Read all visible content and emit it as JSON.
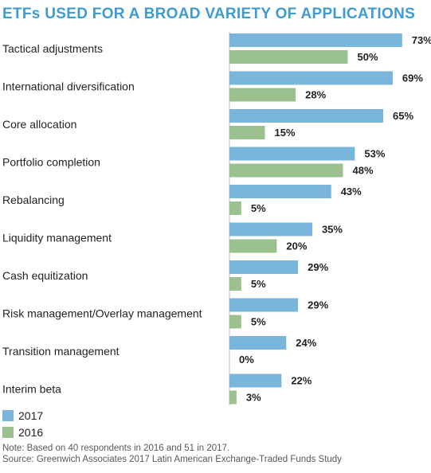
{
  "title": "ETFs USED FOR A BROAD VARIETY OF APPLICATIONS",
  "chart_data": {
    "type": "bar",
    "orientation": "horizontal",
    "categories": [
      "Tactical adjustments",
      "International diversification",
      "Core allocation",
      "Portfolio completion",
      "Rebalancing",
      "Liquidity management",
      "Cash equitization",
      "Risk management/Overlay management",
      "Transition management",
      "Interim beta"
    ],
    "series": [
      {
        "name": "2017",
        "color": "#7ab5dc",
        "values": [
          73,
          69,
          65,
          53,
          43,
          35,
          29,
          29,
          24,
          22
        ]
      },
      {
        "name": "2016",
        "color": "#9bc18e",
        "values": [
          50,
          28,
          15,
          48,
          5,
          20,
          5,
          5,
          0,
          3
        ]
      }
    ],
    "value_suffix": "%",
    "xlim": [
      0,
      100
    ],
    "grid": false,
    "legend_position": "bottom-left"
  },
  "notes": {
    "line1": "Note: Based on 40 respondents in 2016 and 51 in 2017.",
    "line2": "Source: Greenwich Associates 2017 Latin American Exchange-Traded Funds Study"
  }
}
